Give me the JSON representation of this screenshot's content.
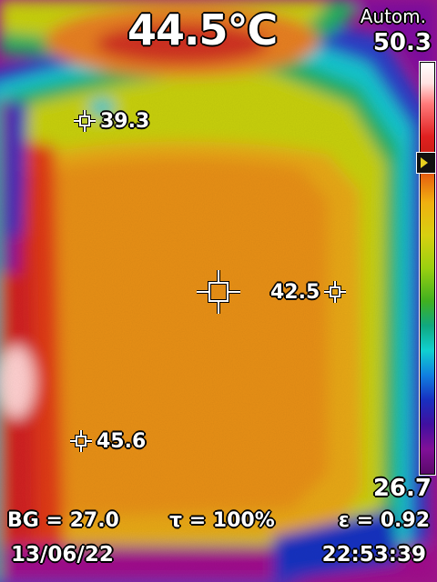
{
  "readout": {
    "center_temperature": "44.5°C",
    "range_mode": "Autom."
  },
  "scale": {
    "max": "50.3",
    "min": "26.7"
  },
  "spots": [
    {
      "value": "39.3"
    },
    {
      "value": "42.5"
    },
    {
      "value": "45.6"
    }
  ],
  "parameters": {
    "background": "BG = 27.0",
    "transmission": "τ = 100%",
    "emissivity": "ε = 0.92"
  },
  "footer": {
    "date": "13/06/22",
    "time": "22:53:39"
  },
  "palette": "iron-rainbow",
  "marker_color": "#ffffff"
}
